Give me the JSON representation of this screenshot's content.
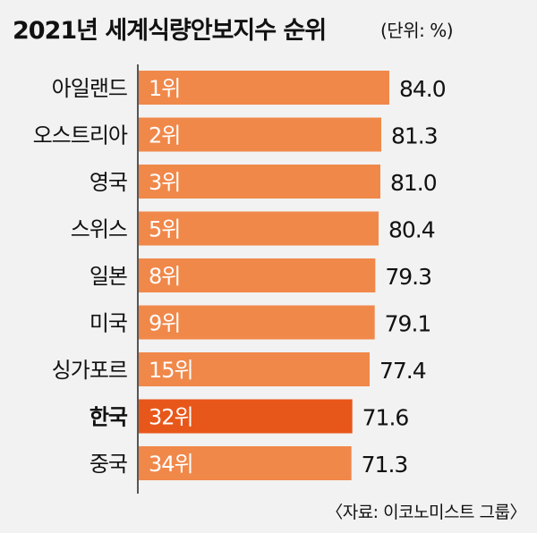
{
  "title": "2021년 세계식량안보지수 순위",
  "unit": "(단위: %)",
  "source": "〈자료: 이코노미스트 그룹〉",
  "colors": {
    "bar": "#f0884a",
    "highlight": "#e8571a",
    "text": "#111111",
    "rank_text": "#ffffff"
  },
  "chart_data": {
    "type": "bar",
    "orientation": "horizontal",
    "categories": [
      "아일랜드",
      "오스트리아",
      "영국",
      "스위스",
      "일본",
      "미국",
      "싱가포르",
      "한국",
      "중국"
    ],
    "values": [
      84.0,
      81.3,
      81.0,
      80.4,
      79.3,
      79.1,
      77.4,
      71.6,
      71.3
    ],
    "value_labels": [
      "84.0",
      "81.3",
      "81.0",
      "80.4",
      "79.3",
      "79.1",
      "77.4",
      "71.6",
      "71.3"
    ],
    "rank_labels": [
      "1위",
      "2위",
      "3위",
      "5위",
      "8위",
      "9위",
      "15위",
      "32위",
      "34위"
    ],
    "highlight_index": 7,
    "title": "2021년 세계식량안보지수 순위",
    "xlabel": "",
    "ylabel": ""
  }
}
